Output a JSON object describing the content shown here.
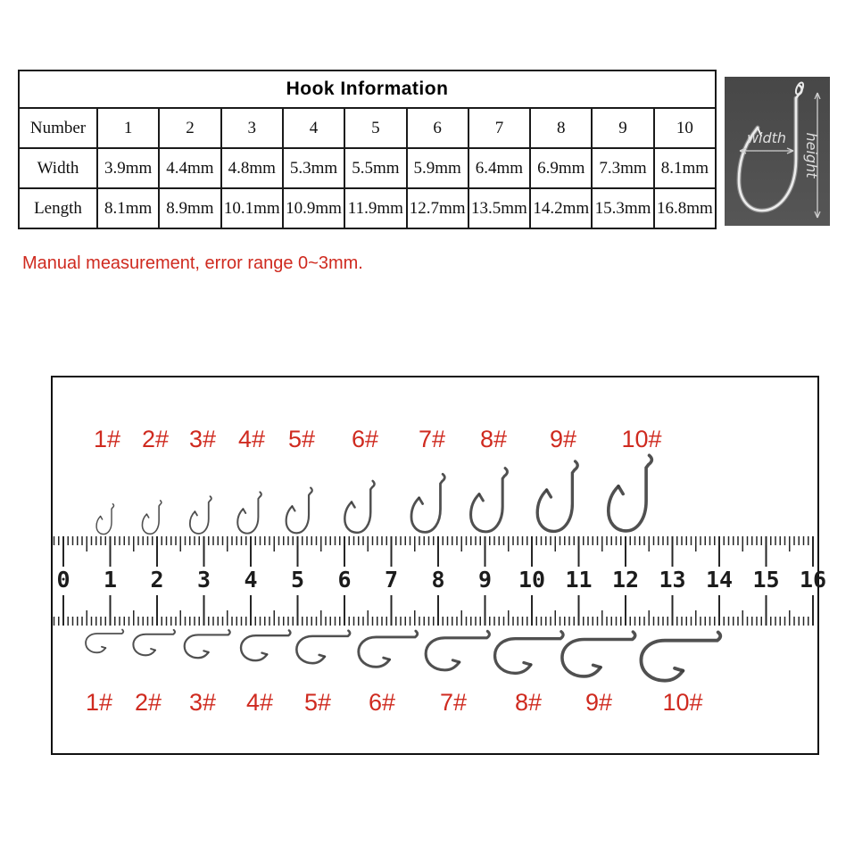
{
  "table": {
    "title": "Hook Information",
    "row_headers": [
      "Number",
      "Width",
      "Length"
    ],
    "rows": {
      "number": [
        "1",
        "2",
        "3",
        "4",
        "5",
        "6",
        "7",
        "8",
        "9",
        "10"
      ],
      "width": [
        "3.9mm",
        "4.4mm",
        "4.8mm",
        "5.3mm",
        "5.5mm",
        "5.9mm",
        "6.4mm",
        "6.9mm",
        "7.3mm",
        "8.1mm"
      ],
      "length": [
        "8.1mm",
        "8.9mm",
        "10.1mm",
        "10.9mm",
        "11.9mm",
        "12.7mm",
        "13.5mm",
        "14.2mm",
        "15.3mm",
        "16.8mm"
      ]
    }
  },
  "photo": {
    "width_label": "width",
    "height_label": "height"
  },
  "note": {
    "text": "Manual measurement, error range 0~3mm."
  },
  "ruler": {
    "numbers": [
      "0",
      "1",
      "2",
      "3",
      "4",
      "5",
      "6",
      "7",
      "8",
      "9",
      "10",
      "11",
      "12",
      "13",
      "14",
      "15",
      "16"
    ]
  },
  "hooks": {
    "labels_top": [
      "1#",
      "2#",
      "3#",
      "4#",
      "5#",
      "6#",
      "7#",
      "8#",
      "9#",
      "10#"
    ],
    "labels_bottom": [
      "1#",
      "2#",
      "3#",
      "4#",
      "5#",
      "6#",
      "7#",
      "8#",
      "9#",
      "10#"
    ]
  },
  "colors": {
    "accent_red": "#cf2a1f",
    "photo_bg": "#4c4c4c",
    "hook_ink": "#3d3d3d",
    "table_ink": "#111111",
    "tick_ink": "#262626"
  }
}
